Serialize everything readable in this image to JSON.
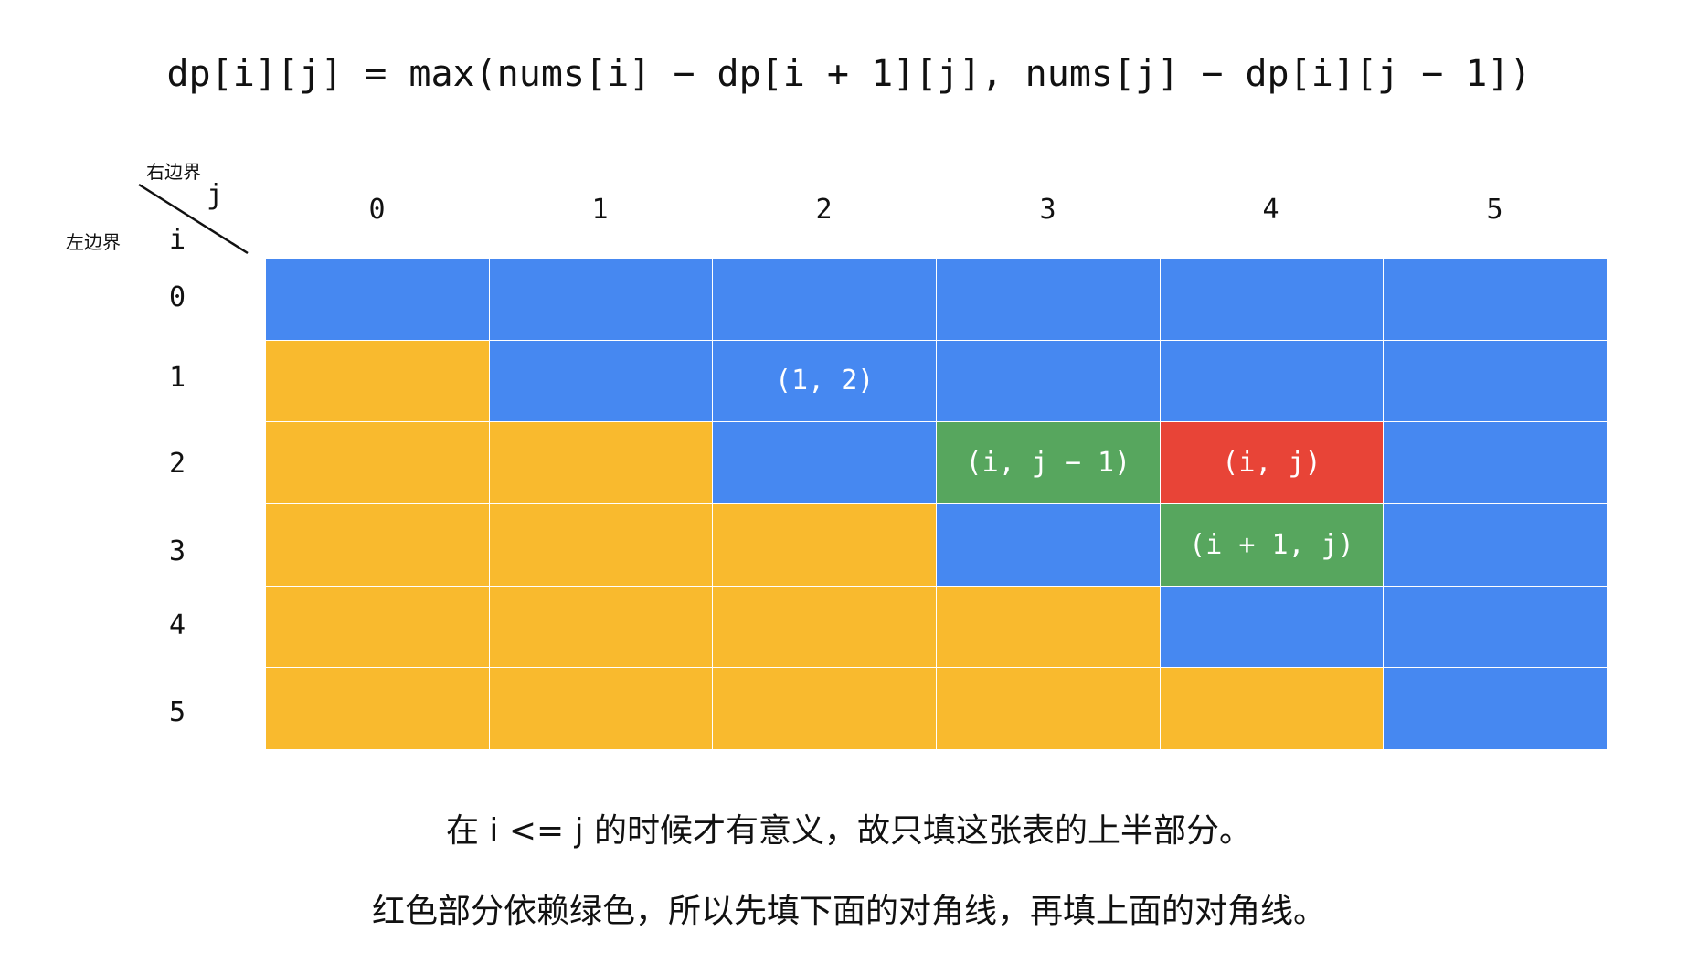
{
  "formula": "dp[i][j] = max(nums[i] − dp[i + 1][j], nums[j] − dp[i][j − 1])",
  "corner": {
    "right_bound_label": "右边界",
    "left_bound_label": "左边界",
    "col_var": "j",
    "row_var": "i"
  },
  "columns": [
    "0",
    "1",
    "2",
    "3",
    "4",
    "5"
  ],
  "rows": [
    "0",
    "1",
    "2",
    "3",
    "4",
    "5"
  ],
  "colors": {
    "blue": "#4688f1",
    "yellow": "#f9ba2e",
    "green": "#57a65e",
    "red": "#e84437"
  },
  "grid": [
    [
      {
        "color": "blue",
        "text": ""
      },
      {
        "color": "blue",
        "text": ""
      },
      {
        "color": "blue",
        "text": ""
      },
      {
        "color": "blue",
        "text": ""
      },
      {
        "color": "blue",
        "text": ""
      },
      {
        "color": "blue",
        "text": ""
      }
    ],
    [
      {
        "color": "yellow",
        "text": ""
      },
      {
        "color": "blue",
        "text": ""
      },
      {
        "color": "blue",
        "text": "(1, 2)"
      },
      {
        "color": "blue",
        "text": ""
      },
      {
        "color": "blue",
        "text": ""
      },
      {
        "color": "blue",
        "text": ""
      }
    ],
    [
      {
        "color": "yellow",
        "text": ""
      },
      {
        "color": "yellow",
        "text": ""
      },
      {
        "color": "blue",
        "text": ""
      },
      {
        "color": "green",
        "text": "(i, j − 1)"
      },
      {
        "color": "red",
        "text": "(i, j)"
      },
      {
        "color": "blue",
        "text": ""
      }
    ],
    [
      {
        "color": "yellow",
        "text": ""
      },
      {
        "color": "yellow",
        "text": ""
      },
      {
        "color": "yellow",
        "text": ""
      },
      {
        "color": "blue",
        "text": ""
      },
      {
        "color": "green",
        "text": "(i + 1, j)"
      },
      {
        "color": "blue",
        "text": ""
      }
    ],
    [
      {
        "color": "yellow",
        "text": ""
      },
      {
        "color": "yellow",
        "text": ""
      },
      {
        "color": "yellow",
        "text": ""
      },
      {
        "color": "yellow",
        "text": ""
      },
      {
        "color": "blue",
        "text": ""
      },
      {
        "color": "blue",
        "text": ""
      }
    ],
    [
      {
        "color": "yellow",
        "text": ""
      },
      {
        "color": "yellow",
        "text": ""
      },
      {
        "color": "yellow",
        "text": ""
      },
      {
        "color": "yellow",
        "text": ""
      },
      {
        "color": "yellow",
        "text": ""
      },
      {
        "color": "blue",
        "text": ""
      }
    ]
  ],
  "captions": [
    "在 i <= j 的时候才有意义，故只填这张表的上半部分。",
    "红色部分依赖绿色，所以先填下面的对角线，再填上面的对角线。"
  ]
}
